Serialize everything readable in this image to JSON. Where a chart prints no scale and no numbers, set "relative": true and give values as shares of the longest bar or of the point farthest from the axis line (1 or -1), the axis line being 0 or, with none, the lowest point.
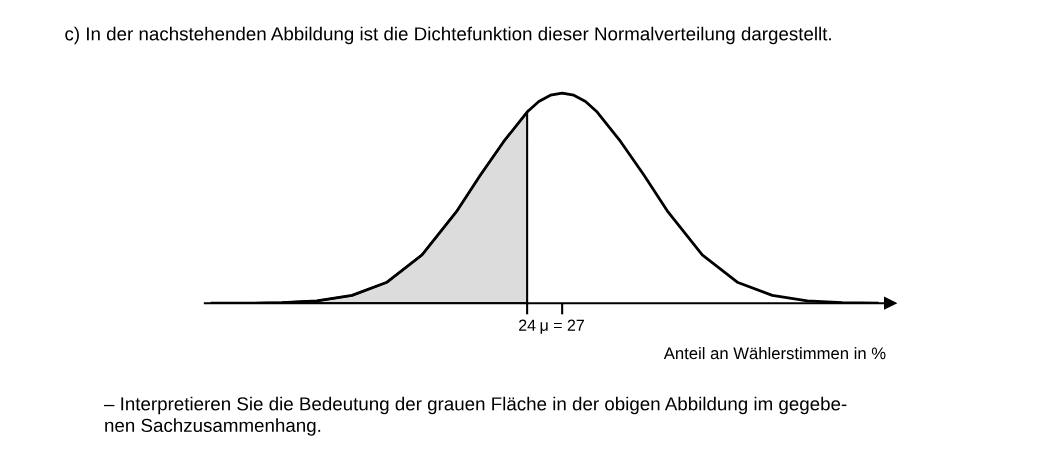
{
  "chart_data": {
    "type": "line",
    "relative": true,
    "title": "c) In der nachstehenden Abbildung ist die Dichtefunktion dieser Normalverteilung dargestellt.",
    "xlabel": "Anteil an Wählerstimmen in %",
    "annotations": [
      "– Interpretieren Sie die Bedeutung der grauen Fläche in der obigen Abbildung im gegebe-\nnen Sachzusammenhang."
    ],
    "xlim": [
      -3.6,
      55.1
    ],
    "xticks": [
      {
        "value": 24,
        "label": "24"
      },
      {
        "value": 27,
        "label": "μ = 27"
      }
    ],
    "grid": false,
    "legend": false,
    "series": [
      {
        "type": "area",
        "color": "#dcdcdc",
        "x": [
          -3,
          0,
          3,
          6,
          9,
          12,
          15,
          18,
          20,
          22,
          24
        ],
        "values": [
          0,
          0,
          0.003,
          0.011,
          0.037,
          0.1,
          0.23,
          0.44,
          0.61,
          0.77,
          0.91
        ]
      },
      {
        "color": "#000000",
        "x": [
          -3,
          0,
          3,
          6,
          9,
          12,
          15,
          18,
          20,
          22,
          24,
          25,
          26,
          27,
          28,
          29,
          30,
          32,
          34,
          36,
          39,
          42,
          45,
          48,
          51,
          54
        ],
        "values": [
          0,
          0,
          0.003,
          0.011,
          0.037,
          0.1,
          0.23,
          0.44,
          0.61,
          0.77,
          0.91,
          0.96,
          0.99,
          1,
          0.99,
          0.96,
          0.91,
          0.77,
          0.61,
          0.44,
          0.23,
          0.1,
          0.037,
          0.011,
          0.003,
          0
        ]
      }
    ]
  }
}
